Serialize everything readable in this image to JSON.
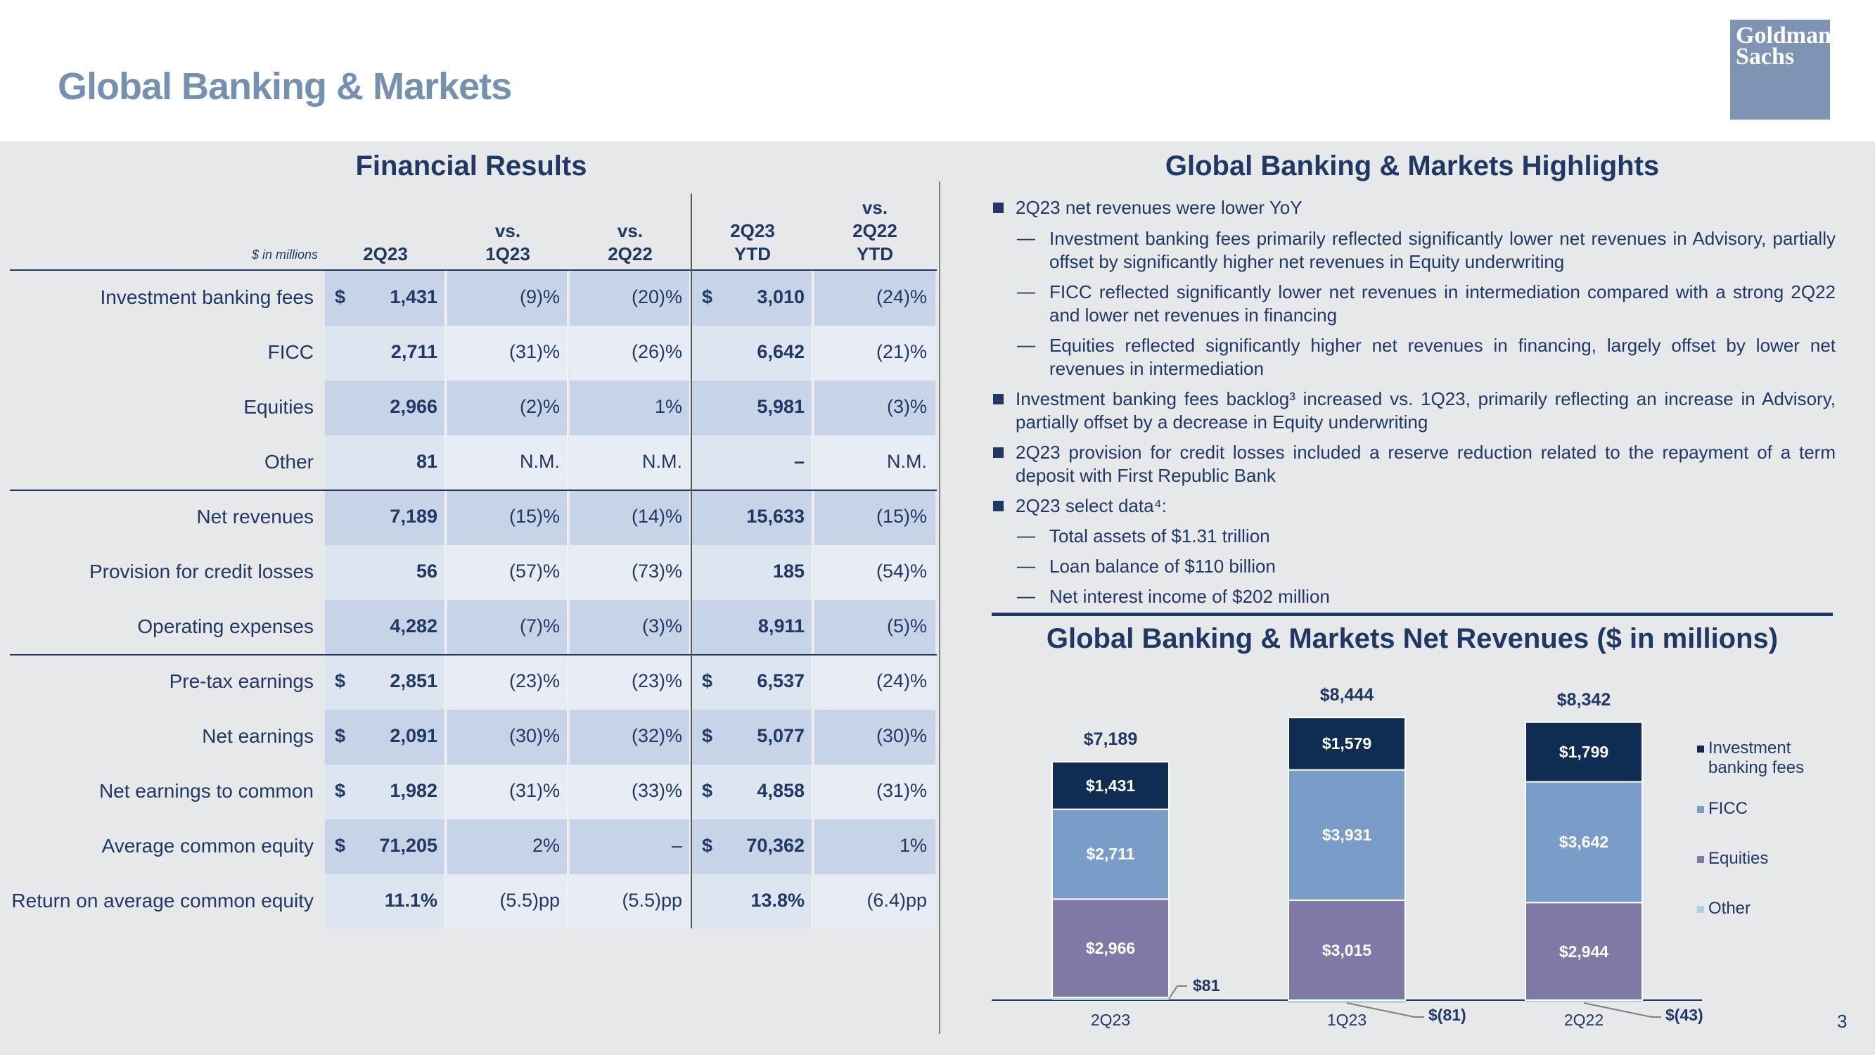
{
  "title": "Global Banking & Markets",
  "logo": {
    "line1": "Goldman",
    "line2": "Sachs"
  },
  "page_number": "3",
  "financial_results": {
    "heading": "Financial Results",
    "units_note": "$ in millions",
    "columns": [
      {
        "line1": "",
        "line2": "",
        "line3": "2Q23"
      },
      {
        "line1": "",
        "line2": "vs.",
        "line3": "1Q23"
      },
      {
        "line1": "",
        "line2": "vs.",
        "line3": "2Q22"
      },
      {
        "line1": "",
        "line2": "2Q23",
        "line3": "YTD"
      },
      {
        "line1": "vs.",
        "line2": "2Q22",
        "line3": "YTD"
      }
    ],
    "rows": [
      {
        "label": "Investment banking fees",
        "dollar1": "$",
        "c1": "1,431",
        "c2": "(9)%",
        "c3": "(20)%",
        "dollar4": "$",
        "c4": "3,010",
        "c5": "(24)%"
      },
      {
        "label": "FICC",
        "dollar1": "",
        "c1": "2,711",
        "c2": "(31)%",
        "c3": "(26)%",
        "dollar4": "",
        "c4": "6,642",
        "c5": "(21)%"
      },
      {
        "label": "Equities",
        "dollar1": "",
        "c1": "2,966",
        "c2": "(2)%",
        "c3": "1%",
        "dollar4": "",
        "c4": "5,981",
        "c5": "(3)%"
      },
      {
        "label": "Other",
        "dollar1": "",
        "c1": "81",
        "c2": "N.M.",
        "c3": "N.M.",
        "dollar4": "",
        "c4": "–",
        "c5": "N.M."
      },
      {
        "label": "Net revenues",
        "dollar1": "",
        "c1": "7,189",
        "c2": "(15)%",
        "c3": "(14)%",
        "dollar4": "",
        "c4": "15,633",
        "c5": "(15)%"
      },
      {
        "label": "Provision for credit losses",
        "dollar1": "",
        "c1": "56",
        "c2": "(57)%",
        "c3": "(73)%",
        "dollar4": "",
        "c4": "185",
        "c5": "(54)%"
      },
      {
        "label": "Operating expenses",
        "dollar1": "",
        "c1": "4,282",
        "c2": "(7)%",
        "c3": "(3)%",
        "dollar4": "",
        "c4": "8,911",
        "c5": "(5)%"
      },
      {
        "label": "Pre-tax earnings",
        "dollar1": "$",
        "c1": "2,851",
        "c2": "(23)%",
        "c3": "(23)%",
        "dollar4": "$",
        "c4": "6,537",
        "c5": "(24)%"
      },
      {
        "label": "Net earnings",
        "dollar1": "$",
        "c1": "2,091",
        "c2": "(30)%",
        "c3": "(32)%",
        "dollar4": "$",
        "c4": "5,077",
        "c5": "(30)%"
      },
      {
        "label": "Net earnings to common",
        "dollar1": "$",
        "c1": "1,982",
        "c2": "(31)%",
        "c3": "(33)%",
        "dollar4": "$",
        "c4": "4,858",
        "c5": "(31)%"
      },
      {
        "label": "Average common equity",
        "dollar1": "$",
        "c1": "71,205",
        "c2": "2%",
        "c3": "–",
        "dollar4": "$",
        "c4": "70,362",
        "c5": "1%"
      },
      {
        "label": "Return on average common equity",
        "dollar1": "",
        "c1": "11.1%",
        "c2": "(5.5)pp",
        "c3": "(5.5)pp",
        "dollar4": "",
        "c4": "13.8%",
        "c5": "(6.4)pp"
      }
    ]
  },
  "highlights": {
    "heading": "Global Banking & Markets Highlights",
    "items": [
      {
        "type": "bullet",
        "text": "2Q23 net revenues were lower YoY"
      },
      {
        "type": "sub",
        "text": "Investment banking fees primarily reflected significantly lower net revenues in Advisory, partially offset by significantly higher net revenues in Equity underwriting"
      },
      {
        "type": "sub",
        "text": "FICC reflected significantly lower net revenues in intermediation compared with a strong 2Q22 and lower net revenues in financing"
      },
      {
        "type": "sub",
        "text": "Equities reflected significantly higher net revenues in financing, largely offset by lower net revenues in intermediation"
      },
      {
        "type": "bullet",
        "text": "Investment banking fees backlog³ increased vs. 1Q23, primarily reflecting an increase in Advisory, partially offset by a decrease in Equity underwriting"
      },
      {
        "type": "bullet",
        "text": "2Q23 provision for credit losses included a reserve reduction related to the repayment of a term deposit with First Republic Bank"
      },
      {
        "type": "bullet",
        "text": "2Q23 select data⁴:"
      },
      {
        "type": "sub",
        "text": "Total assets of $1.31 trillion"
      },
      {
        "type": "sub",
        "text": "Loan balance of $110 billion"
      },
      {
        "type": "sub",
        "text": "Net interest income of $202 million"
      }
    ]
  },
  "chart_heading": "Global Banking & Markets Net Revenues ($ in millions)",
  "chart_data": {
    "type": "bar",
    "stacked": true,
    "categories": [
      "2Q23",
      "1Q23",
      "2Q22"
    ],
    "series": [
      {
        "name": "Other",
        "values": [
          81,
          -81,
          -43
        ],
        "labels": [
          "$81",
          "$(81)",
          "$(43)"
        ],
        "color": "#a9d3de"
      },
      {
        "name": "Equities",
        "values": [
          2966,
          3015,
          2944
        ],
        "labels": [
          "$2,966",
          "$3,015",
          "$2,944"
        ],
        "color": "#8079a6"
      },
      {
        "name": "FICC",
        "values": [
          2711,
          3931,
          3642
        ],
        "labels": [
          "$2,711",
          "$3,931",
          "$3,642"
        ],
        "color": "#7a9cc9"
      },
      {
        "name": "Investment banking fees",
        "values": [
          1431,
          1579,
          1799
        ],
        "labels": [
          "$1,431",
          "$1,579",
          "$1,799"
        ],
        "color": "#0f2d52"
      }
    ],
    "totals": [
      7189,
      8444,
      8342
    ],
    "total_labels": [
      "$7,189",
      "$8,444",
      "$8,342"
    ],
    "legend": {
      "position": "right",
      "entries": [
        {
          "name": "Investment",
          "name2": "banking fees",
          "color": "#0f2d52"
        },
        {
          "name": "FICC",
          "name2": "",
          "color": "#7a9cc9"
        },
        {
          "name": "Equities",
          "name2": "",
          "color": "#8079a6"
        },
        {
          "name": "Other",
          "name2": "",
          "color": "#a9d3de"
        }
      ]
    }
  }
}
